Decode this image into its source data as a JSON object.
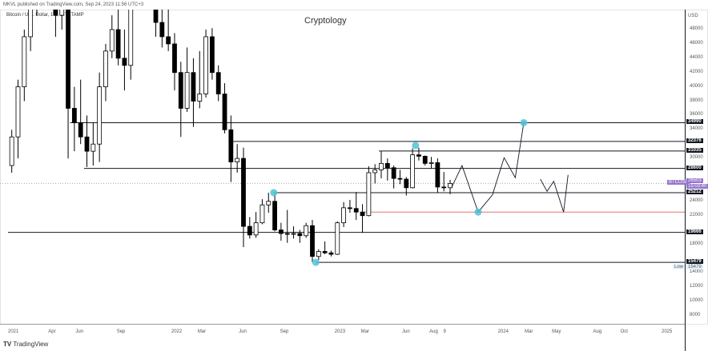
{
  "header": {
    "published": "MKVL published on TradingView.com, Sep 24, 2023 11:56 UTC+3",
    "symbol": "Bitcoin / U.S. Dollar, 1W, BITSTAMP"
  },
  "footer": {
    "brand": "TradingView"
  },
  "chart_data": {
    "type": "candlestick",
    "title": "Cryptology",
    "currency": "USD",
    "y_ticks": [
      48000,
      46000,
      44000,
      42000,
      40000,
      38000,
      36000,
      34000,
      30000,
      24000,
      22000,
      18000,
      14000,
      12000,
      10000,
      8000
    ],
    "x_ticks": [
      [
        "2021",
        "2021-01-01"
      ],
      [
        "Apr",
        "2021-04-01"
      ],
      [
        "Jun",
        "2021-06-01"
      ],
      [
        "Sep",
        "2021-09-01"
      ],
      [
        "2022",
        "2022-01-01"
      ],
      [
        "Mar",
        "2022-03-01"
      ],
      [
        "Jun",
        "2022-06-01"
      ],
      [
        "Sep",
        "2022-09-01"
      ],
      [
        "2023",
        "2023-01-01"
      ],
      [
        "Mar",
        "2023-03-01"
      ],
      [
        "Jun",
        "2023-06-01"
      ],
      [
        "Aug",
        "2023-08-01"
      ],
      [
        "9",
        "2023-09-01"
      ],
      [
        "2024",
        "2024-01-01"
      ],
      [
        "Mar",
        "2024-03-01"
      ],
      [
        "May",
        "2024-05-01"
      ],
      [
        "Aug",
        "2024-08-01"
      ],
      [
        "Oct",
        "2024-10-01"
      ],
      [
        "2025",
        "2025-01-01"
      ]
    ],
    "candles": [
      [
        "2021-01-04",
        29000,
        34000,
        28000,
        33000
      ],
      [
        "2021-01-18",
        33000,
        41000,
        30000,
        40000
      ],
      [
        "2021-02-01",
        40000,
        48000,
        38000,
        47000
      ],
      [
        "2021-02-15",
        47000,
        58000,
        45000,
        57000
      ],
      [
        "2021-03-01",
        57000,
        61000,
        50000,
        58000
      ],
      [
        "2021-03-15",
        58000,
        60000,
        51000,
        57000
      ],
      [
        "2021-03-29",
        57000,
        64000,
        55000,
        59000
      ],
      [
        "2021-04-12",
        59000,
        64800,
        47000,
        50000
      ],
      [
        "2021-04-26",
        50000,
        59000,
        48000,
        57000
      ],
      [
        "2021-05-10",
        57000,
        58000,
        30000,
        37000
      ],
      [
        "2021-05-24",
        37000,
        40000,
        31000,
        35000
      ],
      [
        "2021-06-07",
        35000,
        41000,
        32000,
        33000
      ],
      [
        "2021-06-21",
        33000,
        36000,
        28800,
        31000
      ],
      [
        "2021-07-05",
        31000,
        35000,
        29000,
        32000
      ],
      [
        "2021-07-19",
        32000,
        42000,
        29500,
        40000
      ],
      [
        "2021-08-02",
        40000,
        46000,
        38000,
        45000
      ],
      [
        "2021-08-16",
        45000,
        50000,
        44000,
        48000
      ],
      [
        "2021-08-30",
        48000,
        52000,
        43000,
        44000
      ],
      [
        "2021-09-13",
        44000,
        48000,
        39500,
        43000
      ],
      [
        "2021-09-27",
        43000,
        56000,
        41000,
        55000
      ],
      [
        "2021-10-11",
        55000,
        67000,
        54000,
        61000
      ],
      [
        "2021-10-25",
        61000,
        66000,
        58000,
        64000
      ],
      [
        "2021-11-08",
        64000,
        69000,
        56000,
        57000
      ],
      [
        "2021-11-22",
        57000,
        59000,
        47000,
        49000
      ],
      [
        "2021-12-06",
        49000,
        52000,
        45500,
        47000
      ],
      [
        "2021-12-20",
        47000,
        52000,
        45000,
        46000
      ],
      [
        "2022-01-03",
        46000,
        47500,
        39500,
        42000
      ],
      [
        "2022-01-17",
        42000,
        43500,
        33000,
        37000
      ],
      [
        "2022-01-31",
        37000,
        45500,
        36500,
        42000
      ],
      [
        "2022-02-14",
        42000,
        44000,
        34400,
        38000
      ],
      [
        "2022-02-28",
        38000,
        45000,
        37000,
        39000
      ],
      [
        "2022-03-14",
        39000,
        48000,
        38500,
        47000
      ],
      [
        "2022-03-28",
        47000,
        48200,
        41000,
        42000
      ],
      [
        "2022-04-11",
        42000,
        43000,
        38000,
        39000
      ],
      [
        "2022-04-25",
        39000,
        40500,
        33500,
        34000
      ],
      [
        "2022-05-09",
        34000,
        36000,
        26700,
        29500
      ],
      [
        "2022-05-23",
        29500,
        32000,
        28000,
        30000
      ],
      [
        "2022-06-06",
        30000,
        31500,
        17600,
        20500
      ],
      [
        "2022-06-20",
        20500,
        21800,
        18800,
        19300
      ],
      [
        "2022-07-04",
        19300,
        22500,
        18900,
        21000
      ],
      [
        "2022-07-18",
        21000,
        24300,
        20800,
        23500
      ],
      [
        "2022-08-01",
        23500,
        25200,
        22400,
        24000
      ],
      [
        "2022-08-15",
        24000,
        25000,
        19800,
        20000
      ],
      [
        "2022-08-29",
        20000,
        21000,
        18500,
        19500
      ],
      [
        "2022-09-12",
        19500,
        22800,
        18200,
        19400
      ],
      [
        "2022-09-26",
        19400,
        20500,
        18800,
        19500
      ],
      [
        "2022-10-10",
        19500,
        20000,
        18200,
        19200
      ],
      [
        "2022-10-24",
        19200,
        21000,
        18900,
        20600
      ],
      [
        "2022-11-07",
        20600,
        21400,
        15500,
        16300
      ],
      [
        "2022-11-21",
        16300,
        17300,
        15800,
        17000
      ],
      [
        "2022-12-05",
        17000,
        18400,
        16600,
        16800
      ],
      [
        "2022-12-19",
        16800,
        17100,
        16300,
        16600
      ],
      [
        "2023-01-02",
        16600,
        21200,
        16500,
        21000
      ],
      [
        "2023-01-16",
        21000,
        23900,
        20400,
        23100
      ],
      [
        "2023-01-30",
        23100,
        24200,
        22400,
        23000
      ],
      [
        "2023-02-13",
        23000,
        25300,
        21400,
        22500
      ],
      [
        "2023-02-27",
        22500,
        23600,
        19600,
        22000
      ],
      [
        "2023-03-13",
        22000,
        28900,
        21900,
        28000
      ],
      [
        "2023-03-27",
        28000,
        29200,
        26500,
        28400
      ],
      [
        "2023-04-10",
        28400,
        31000,
        27200,
        29300
      ],
      [
        "2023-04-24",
        29300,
        30000,
        26900,
        28700
      ],
      [
        "2023-05-08",
        28700,
        29000,
        25800,
        27200
      ],
      [
        "2023-05-22",
        27200,
        28400,
        26400,
        27100
      ],
      [
        "2023-06-05",
        27100,
        27400,
        24800,
        25900
      ],
      [
        "2023-06-19",
        25900,
        31400,
        25800,
        30500
      ],
      [
        "2023-07-03",
        30500,
        31500,
        29700,
        30300
      ],
      [
        "2023-07-17",
        30300,
        30400,
        29000,
        29300
      ],
      [
        "2023-07-31",
        29300,
        30200,
        28600,
        29400
      ],
      [
        "2023-08-14",
        29400,
        30000,
        25200,
        26000
      ],
      [
        "2023-08-28",
        26000,
        28100,
        25400,
        25900
      ],
      [
        "2023-09-11",
        25900,
        27000,
        25000,
        26500
      ]
    ],
    "levels": [
      {
        "value": 34990,
        "from": "2021-05-20",
        "color": "#131722"
      },
      {
        "value": 32376,
        "from": "2022-05-09",
        "color": "#131722"
      },
      {
        "value": 31035,
        "from": "2023-04-10",
        "color": "#131722"
      },
      {
        "value": 28600,
        "from": "2021-06-20",
        "color": "#131722"
      },
      {
        "value": 25212,
        "from": "2022-08-18",
        "color": "#131722"
      },
      {
        "value": 22500,
        "from": "2023-03-08",
        "color": "#e57373"
      },
      {
        "value": 19666,
        "from": "2021-01-01",
        "color": "#131722"
      },
      {
        "value": 15479,
        "from": "2022-11-20",
        "color": "#131722"
      }
    ],
    "projection_1": [
      [
        "2023-09-20",
        26000
      ],
      [
        "2023-10-13",
        29000
      ],
      [
        "2023-11-18",
        22500
      ],
      [
        "2023-12-20",
        24900
      ],
      [
        "2024-01-15",
        30100
      ],
      [
        "2024-02-09",
        27300
      ],
      [
        "2024-02-28",
        34990
      ]
    ],
    "projection_2": [
      [
        "2024-04-05",
        27100
      ],
      [
        "2024-04-20",
        25400
      ],
      [
        "2024-05-05",
        26800
      ],
      [
        "2024-05-27",
        22500
      ],
      [
        "2024-06-06",
        27700
      ]
    ],
    "markers": [
      [
        "2022-08-18",
        25212
      ],
      [
        "2023-07-01",
        31800
      ],
      [
        "2022-11-20",
        15479
      ],
      [
        "2023-11-18",
        22500
      ],
      [
        "2024-02-28",
        34990
      ]
    ],
    "current": {
      "symbol": "BTCUSD",
      "price": "26503",
      "countdown": "15:03:40"
    },
    "low_label": {
      "label": "Low",
      "value": "15479"
    },
    "colors": {
      "marker": "#4fc3d7",
      "current": "#9575cd",
      "red_level": "#e57373"
    }
  }
}
